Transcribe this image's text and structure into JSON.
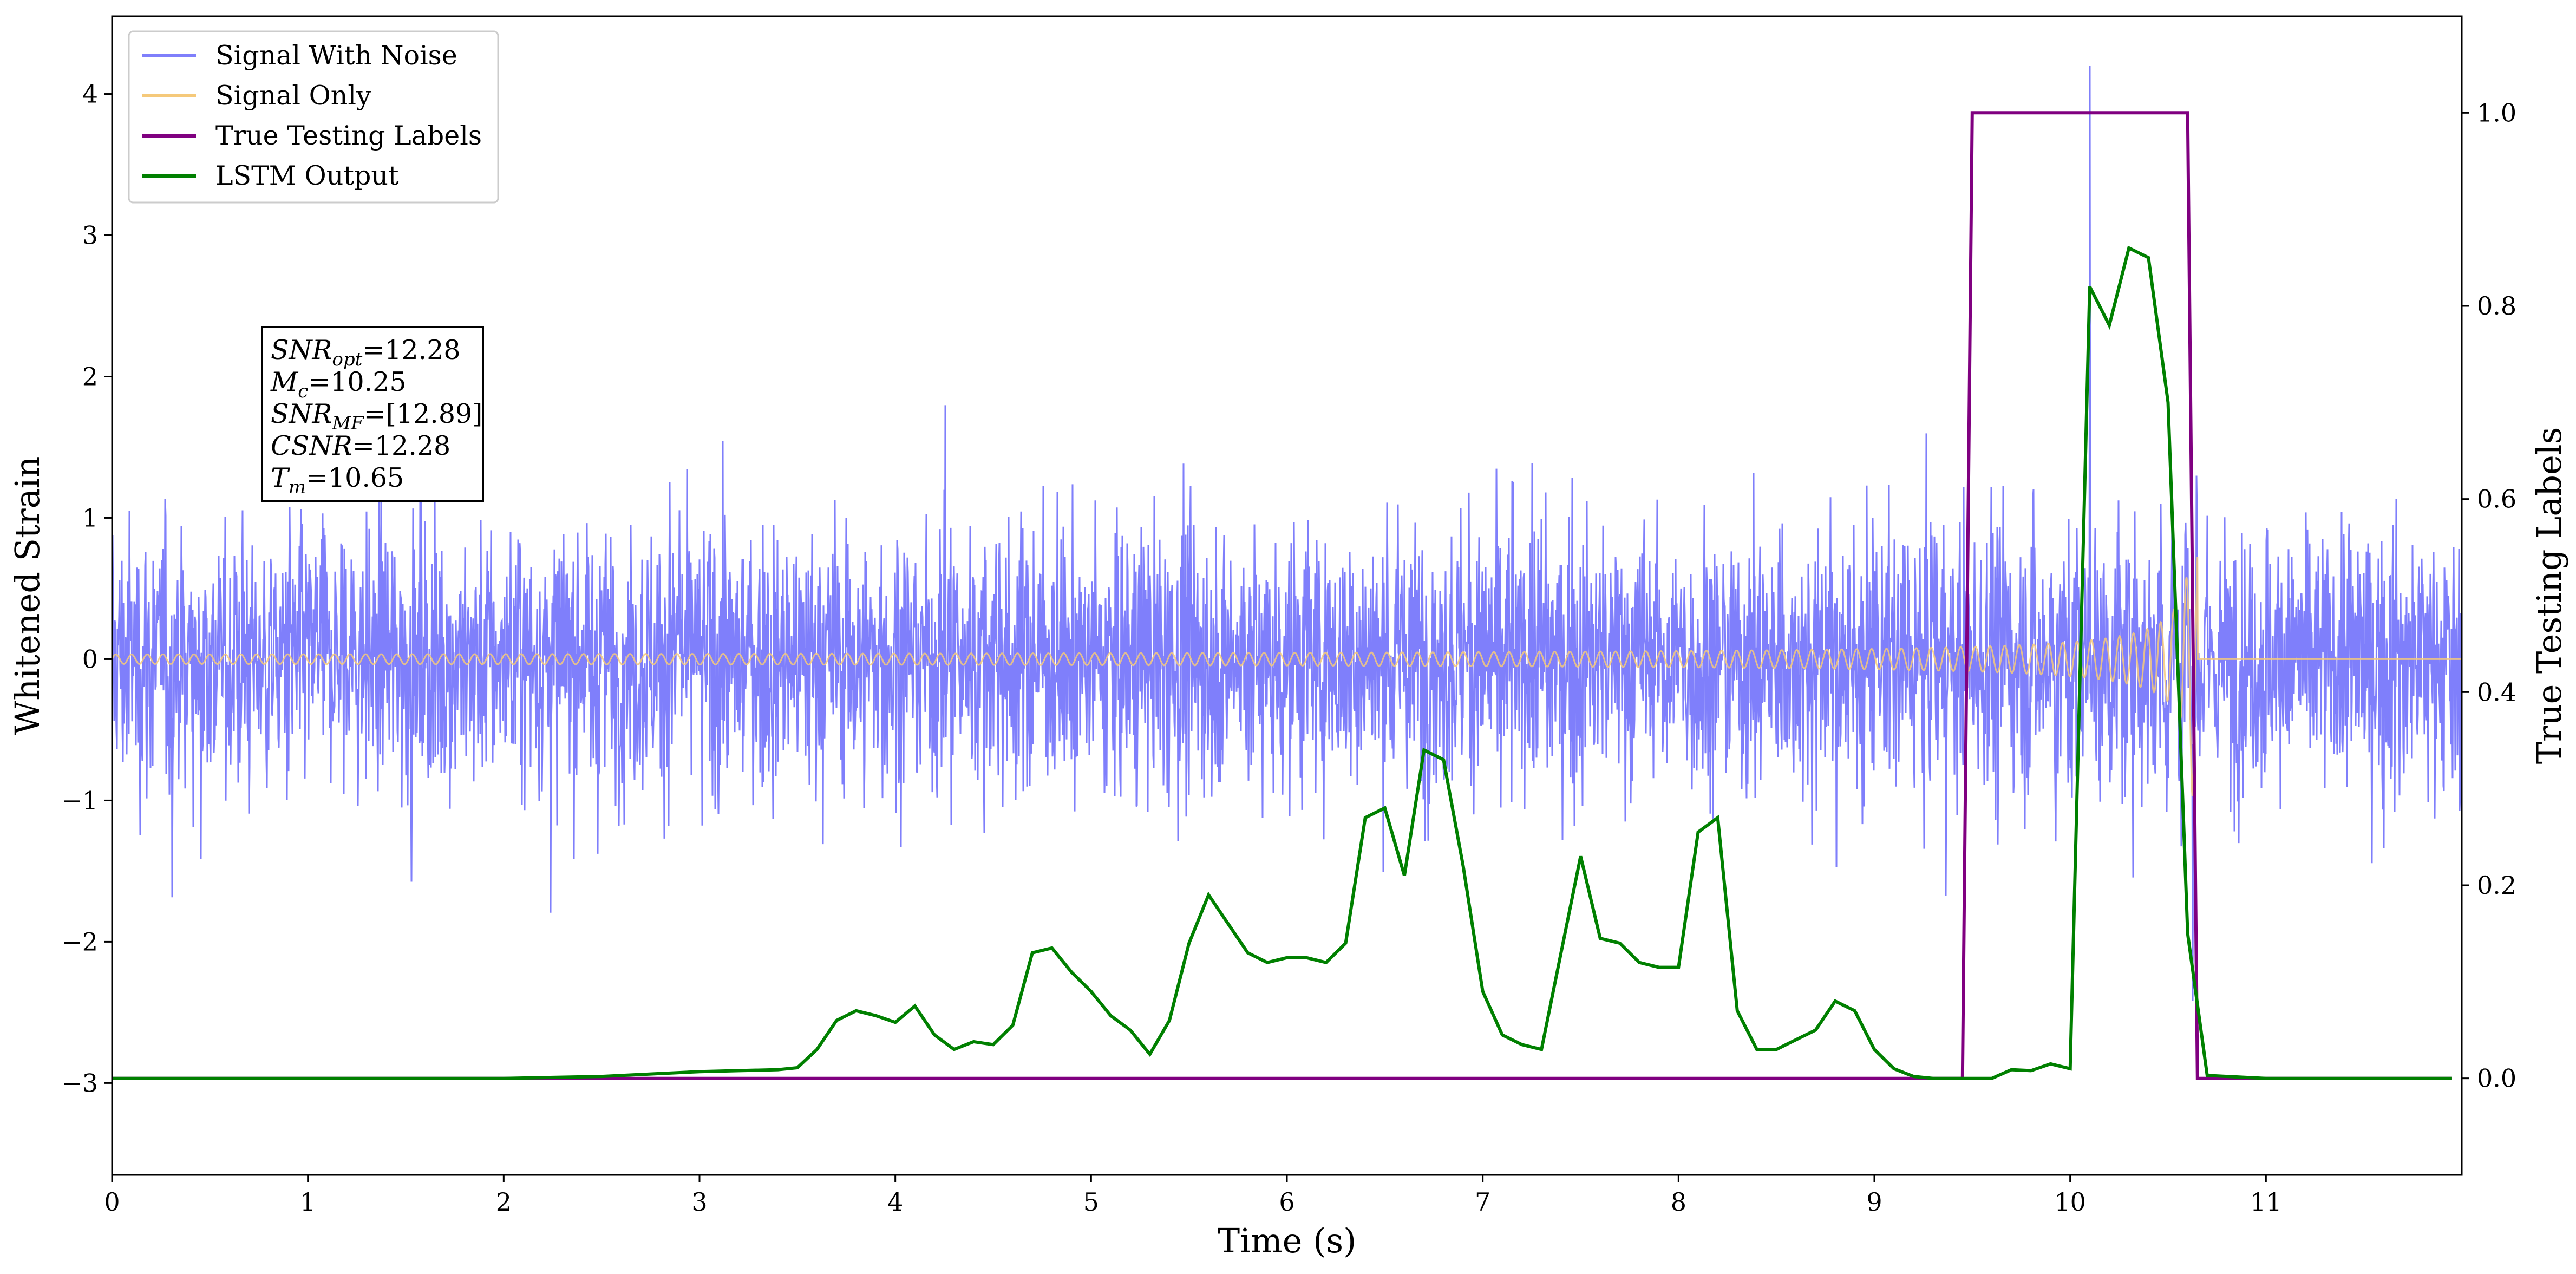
{
  "chart_data": {
    "type": "line",
    "xlabel": "Time (s)",
    "ylabel": "Whitened Strain",
    "y2label": "True Testing Labels",
    "xlim": [
      0,
      12
    ],
    "ylim": [
      -3.65,
      4.55
    ],
    "y2lim": [
      -0.1,
      1.1
    ],
    "x_ticks": [
      "0",
      "1",
      "2",
      "3",
      "4",
      "5",
      "6",
      "7",
      "8",
      "9",
      "10",
      "11"
    ],
    "y_ticks": [
      {
        "value": -3,
        "label": "−3"
      },
      {
        "value": -2,
        "label": "−2"
      },
      {
        "value": -1,
        "label": "−1"
      },
      {
        "value": 0,
        "label": "0"
      },
      {
        "value": 1,
        "label": "1"
      },
      {
        "value": 2,
        "label": "2"
      },
      {
        "value": 3,
        "label": "3"
      },
      {
        "value": 4,
        "label": "4"
      }
    ],
    "y2_ticks": [
      "0.0",
      "0.2",
      "0.4",
      "0.6",
      "0.8",
      "1.0"
    ],
    "legend_position": "top-left",
    "grid": false,
    "series": [
      {
        "name": "Signal With Noise",
        "color": "#7f7ffb",
        "axis": "left",
        "description_note": "dense noise, amplitude ~±1.8, spikes to ~4.2 at t=10.1"
      },
      {
        "name": "Signal Only",
        "color": "#f5c97a",
        "axis": "left"
      },
      {
        "name": "True Testing Labels",
        "color": "#800080",
        "axis": "right"
      },
      {
        "name": "LSTM Output",
        "color": "#008000",
        "axis": "right"
      }
    ],
    "signal_only": {
      "start_amplitude": 0.02,
      "end_amplitude": 1.0,
      "merger_time": 10.65,
      "end_time": 12.0
    },
    "true_labels": {
      "x": [
        0.0,
        9.45,
        9.5,
        10.6,
        10.65,
        11.95
      ],
      "y": [
        0.0,
        0.0,
        1.0,
        1.0,
        0.0,
        0.0
      ]
    },
    "lstm_output": {
      "x": [
        0.0,
        0.5,
        1.0,
        1.5,
        2.0,
        2.5,
        2.8,
        3.0,
        3.2,
        3.4,
        3.5,
        3.6,
        3.7,
        3.8,
        3.9,
        4.0,
        4.1,
        4.2,
        4.3,
        4.4,
        4.5,
        4.6,
        4.7,
        4.8,
        4.9,
        5.0,
        5.1,
        5.2,
        5.3,
        5.4,
        5.5,
        5.6,
        5.7,
        5.8,
        5.9,
        6.0,
        6.1,
        6.2,
        6.3,
        6.4,
        6.5,
        6.6,
        6.7,
        6.8,
        6.9,
        7.0,
        7.1,
        7.2,
        7.3,
        7.4,
        7.5,
        7.6,
        7.7,
        7.8,
        7.9,
        8.0,
        8.1,
        8.2,
        8.3,
        8.4,
        8.5,
        8.6,
        8.7,
        8.8,
        8.9,
        9.0,
        9.1,
        9.2,
        9.3,
        9.4,
        9.5,
        9.6,
        9.7,
        9.8,
        9.9,
        10.0,
        10.1,
        10.2,
        10.3,
        10.4,
        10.5,
        10.6,
        10.7,
        11.0,
        11.5,
        11.95
      ],
      "y": [
        0.0,
        0.0,
        0.0,
        0.0,
        0.0,
        0.002,
        0.005,
        0.007,
        0.008,
        0.009,
        0.011,
        0.03,
        0.06,
        0.07,
        0.065,
        0.058,
        0.075,
        0.045,
        0.03,
        0.038,
        0.035,
        0.055,
        0.13,
        0.135,
        0.11,
        0.09,
        0.065,
        0.05,
        0.025,
        0.06,
        0.14,
        0.19,
        0.16,
        0.13,
        0.12,
        0.125,
        0.125,
        0.12,
        0.14,
        0.27,
        0.28,
        0.21,
        0.34,
        0.33,
        0.22,
        0.09,
        0.045,
        0.035,
        0.03,
        0.13,
        0.23,
        0.145,
        0.14,
        0.12,
        0.115,
        0.115,
        0.255,
        0.27,
        0.07,
        0.03,
        0.03,
        0.04,
        0.05,
        0.08,
        0.07,
        0.03,
        0.01,
        0.002,
        0.0,
        0.0,
        0.0,
        0.0,
        0.009,
        0.008,
        0.015,
        0.01,
        0.82,
        0.78,
        0.86,
        0.85,
        0.7,
        0.15,
        0.003,
        0.0,
        0.0,
        0.0
      ]
    },
    "annotation": {
      "lines": [
        {
          "label": "SNR",
          "sub": "opt",
          "value": "=12.28"
        },
        {
          "label": "M",
          "sub": "c",
          "value": "=10.25"
        },
        {
          "label": "SNR",
          "sub": "MF",
          "value": "=[12.89]"
        },
        {
          "label": "CSNR",
          "sub": "",
          "value": "=12.28"
        },
        {
          "label": "T",
          "sub": "m",
          "value": "=10.65"
        }
      ]
    }
  }
}
